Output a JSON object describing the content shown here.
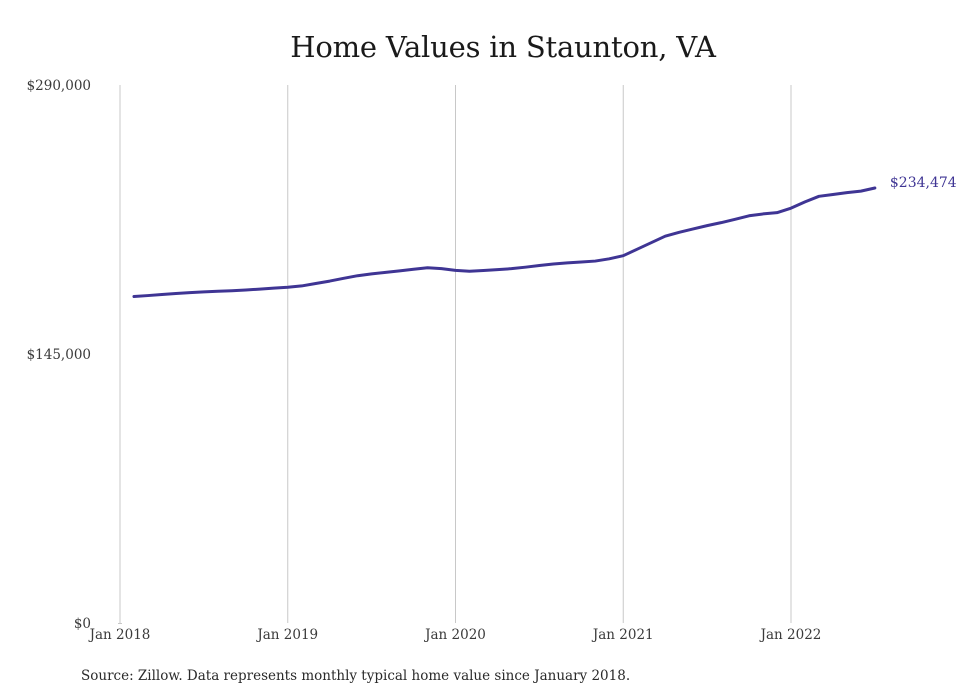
{
  "chart_data": {
    "type": "line",
    "title": "Home Values in Staunton, VA",
    "source": "Source: Zillow. Data represents monthly typical home value since January 2018.",
    "xlabel": "",
    "ylabel": "",
    "xlim": [
      "2018-01",
      "2022-08"
    ],
    "ylim": [
      0,
      290000
    ],
    "y_ticks": [
      {
        "value": 0,
        "label": "$0"
      },
      {
        "value": 145000,
        "label": "$145,000"
      },
      {
        "value": 290000,
        "label": "$290,000"
      }
    ],
    "x_ticks": [
      {
        "value": "2018-01",
        "label": "Jan 2018"
      },
      {
        "value": "2019-01",
        "label": "Jan 2019"
      },
      {
        "value": "2020-01",
        "label": "Jan 2020"
      },
      {
        "value": "2021-01",
        "label": "Jan 2021"
      },
      {
        "value": "2022-01",
        "label": "Jan 2022"
      }
    ],
    "grid": {
      "vertical": true,
      "horizontal": false
    },
    "series": [
      {
        "color": "#3f3594",
        "points": [
          [
            "2018-02",
            176000
          ],
          [
            "2018-03",
            176500
          ],
          [
            "2018-04",
            177100
          ],
          [
            "2018-05",
            177600
          ],
          [
            "2018-06",
            178100
          ],
          [
            "2018-07",
            178500
          ],
          [
            "2018-08",
            178800
          ],
          [
            "2018-09",
            179100
          ],
          [
            "2018-10",
            179500
          ],
          [
            "2018-11",
            180000
          ],
          [
            "2018-12",
            180500
          ],
          [
            "2019-01",
            181000
          ],
          [
            "2019-02",
            181700
          ],
          [
            "2019-03",
            183000
          ],
          [
            "2019-04",
            184300
          ],
          [
            "2019-05",
            185800
          ],
          [
            "2019-06",
            187200
          ],
          [
            "2019-07",
            188200
          ],
          [
            "2019-08",
            189000
          ],
          [
            "2019-09",
            189800
          ],
          [
            "2019-10",
            190700
          ],
          [
            "2019-11",
            191500
          ],
          [
            "2019-12",
            191000
          ],
          [
            "2020-01",
            190100
          ],
          [
            "2020-02",
            189600
          ],
          [
            "2020-03",
            190000
          ],
          [
            "2020-04",
            190500
          ],
          [
            "2020-05",
            191000
          ],
          [
            "2020-06",
            191800
          ],
          [
            "2020-07",
            192700
          ],
          [
            "2020-08",
            193500
          ],
          [
            "2020-09",
            194100
          ],
          [
            "2020-10",
            194600
          ],
          [
            "2020-11",
            195100
          ],
          [
            "2020-12",
            196300
          ],
          [
            "2021-01",
            198000
          ],
          [
            "2021-02",
            201500
          ],
          [
            "2021-03",
            205000
          ],
          [
            "2021-04",
            208500
          ],
          [
            "2021-05",
            210600
          ],
          [
            "2021-06",
            212400
          ],
          [
            "2021-07",
            214200
          ],
          [
            "2021-08",
            215800
          ],
          [
            "2021-09",
            217600
          ],
          [
            "2021-10",
            219500
          ],
          [
            "2021-11",
            220500
          ],
          [
            "2021-12",
            221200
          ],
          [
            "2022-01",
            223600
          ],
          [
            "2022-02",
            227000
          ],
          [
            "2022-03",
            230000
          ],
          [
            "2022-04",
            231000
          ],
          [
            "2022-05",
            232000
          ],
          [
            "2022-06",
            232800
          ],
          [
            "2022-07",
            234474
          ]
        ],
        "end_label": "$234,474"
      }
    ]
  }
}
